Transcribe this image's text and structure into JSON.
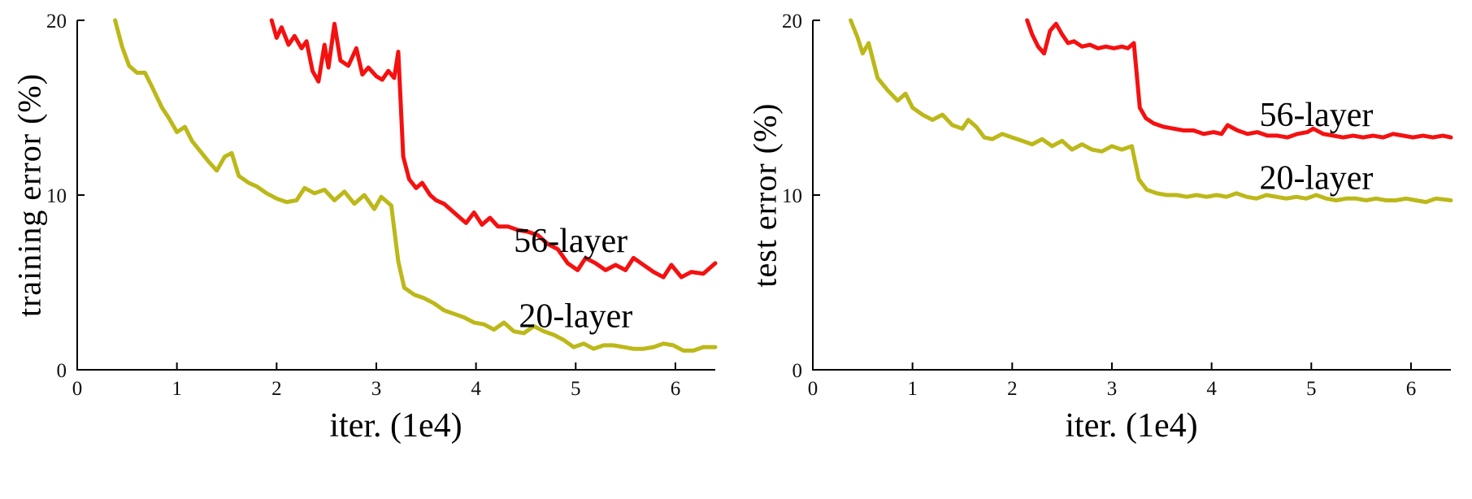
{
  "figure": {
    "background": "#ffffff"
  },
  "chart_data": [
    {
      "type": "line",
      "title": "",
      "xlabel": "iter. (1e4)",
      "ylabel": "training error (%)",
      "xlim": [
        0,
        6.4
      ],
      "ylim": [
        0,
        20
      ],
      "xticks": [
        0,
        1,
        2,
        3,
        4,
        5,
        6
      ],
      "yticks": [
        0,
        10,
        20
      ],
      "grid": false,
      "legend_position": "inline-annotations",
      "axis_color": "#000000",
      "series": [
        {
          "name": "20-layer",
          "color": "#bcb819",
          "label_pos": [
            5.0,
            3.1
          ],
          "points": [
            [
              0.38,
              20.0
            ],
            [
              0.45,
              18.5
            ],
            [
              0.52,
              17.4
            ],
            [
              0.6,
              17.0
            ],
            [
              0.68,
              17.0
            ],
            [
              0.75,
              16.2
            ],
            [
              0.85,
              15.0
            ],
            [
              0.92,
              14.4
            ],
            [
              1.0,
              13.6
            ],
            [
              1.08,
              13.9
            ],
            [
              1.15,
              13.1
            ],
            [
              1.25,
              12.4
            ],
            [
              1.32,
              11.9
            ],
            [
              1.4,
              11.4
            ],
            [
              1.48,
              12.2
            ],
            [
              1.55,
              12.4
            ],
            [
              1.62,
              11.1
            ],
            [
              1.72,
              10.7
            ],
            [
              1.8,
              10.5
            ],
            [
              1.9,
              10.1
            ],
            [
              2.0,
              9.8
            ],
            [
              2.1,
              9.6
            ],
            [
              2.2,
              9.7
            ],
            [
              2.28,
              10.4
            ],
            [
              2.38,
              10.1
            ],
            [
              2.48,
              10.3
            ],
            [
              2.58,
              9.7
            ],
            [
              2.68,
              10.2
            ],
            [
              2.78,
              9.5
            ],
            [
              2.88,
              10.0
            ],
            [
              2.98,
              9.2
            ],
            [
              3.05,
              9.9
            ],
            [
              3.15,
              9.4
            ],
            [
              3.22,
              6.2
            ],
            [
              3.28,
              4.7
            ],
            [
              3.38,
              4.3
            ],
            [
              3.48,
              4.1
            ],
            [
              3.58,
              3.8
            ],
            [
              3.68,
              3.4
            ],
            [
              3.78,
              3.2
            ],
            [
              3.88,
              3.0
            ],
            [
              3.98,
              2.7
            ],
            [
              4.08,
              2.6
            ],
            [
              4.18,
              2.3
            ],
            [
              4.28,
              2.7
            ],
            [
              4.38,
              2.2
            ],
            [
              4.48,
              2.1
            ],
            [
              4.58,
              2.5
            ],
            [
              4.68,
              2.2
            ],
            [
              4.78,
              2.0
            ],
            [
              4.88,
              1.7
            ],
            [
              4.98,
              1.3
            ],
            [
              5.08,
              1.5
            ],
            [
              5.18,
              1.2
            ],
            [
              5.28,
              1.4
            ],
            [
              5.38,
              1.4
            ],
            [
              5.48,
              1.3
            ],
            [
              5.58,
              1.2
            ],
            [
              5.68,
              1.2
            ],
            [
              5.78,
              1.3
            ],
            [
              5.88,
              1.5
            ],
            [
              5.98,
              1.4
            ],
            [
              6.08,
              1.1
            ],
            [
              6.18,
              1.1
            ],
            [
              6.28,
              1.3
            ],
            [
              6.4,
              1.3
            ]
          ]
        },
        {
          "name": "56-layer",
          "color": "#f41110",
          "label_pos": [
            4.95,
            7.4
          ],
          "points": [
            [
              1.95,
              20.0
            ],
            [
              2.0,
              19.0
            ],
            [
              2.05,
              19.6
            ],
            [
              2.12,
              18.6
            ],
            [
              2.18,
              19.1
            ],
            [
              2.25,
              18.4
            ],
            [
              2.3,
              18.8
            ],
            [
              2.36,
              17.1
            ],
            [
              2.42,
              16.5
            ],
            [
              2.48,
              18.6
            ],
            [
              2.52,
              17.3
            ],
            [
              2.58,
              19.8
            ],
            [
              2.64,
              17.7
            ],
            [
              2.72,
              17.4
            ],
            [
              2.8,
              18.4
            ],
            [
              2.86,
              16.9
            ],
            [
              2.92,
              17.3
            ],
            [
              3.0,
              16.8
            ],
            [
              3.06,
              16.6
            ],
            [
              3.12,
              17.1
            ],
            [
              3.18,
              16.7
            ],
            [
              3.22,
              18.2
            ],
            [
              3.27,
              12.2
            ],
            [
              3.33,
              10.9
            ],
            [
              3.4,
              10.4
            ],
            [
              3.46,
              10.7
            ],
            [
              3.54,
              10.0
            ],
            [
              3.6,
              9.7
            ],
            [
              3.68,
              9.5
            ],
            [
              3.76,
              9.1
            ],
            [
              3.84,
              8.7
            ],
            [
              3.9,
              8.4
            ],
            [
              3.98,
              9.0
            ],
            [
              4.06,
              8.3
            ],
            [
              4.14,
              8.7
            ],
            [
              4.22,
              8.2
            ],
            [
              4.32,
              8.2
            ],
            [
              4.42,
              8.0
            ],
            [
              4.52,
              7.9
            ],
            [
              4.62,
              7.7
            ],
            [
              4.72,
              7.2
            ],
            [
              4.82,
              6.9
            ],
            [
              4.92,
              6.1
            ],
            [
              5.02,
              5.7
            ],
            [
              5.1,
              6.4
            ],
            [
              5.2,
              6.1
            ],
            [
              5.3,
              5.7
            ],
            [
              5.4,
              6.0
            ],
            [
              5.5,
              5.7
            ],
            [
              5.58,
              6.4
            ],
            [
              5.68,
              6.0
            ],
            [
              5.78,
              5.6
            ],
            [
              5.88,
              5.3
            ],
            [
              5.96,
              6.0
            ],
            [
              6.06,
              5.3
            ],
            [
              6.16,
              5.6
            ],
            [
              6.28,
              5.5
            ],
            [
              6.4,
              6.1
            ]
          ]
        }
      ]
    },
    {
      "type": "line",
      "title": "",
      "xlabel": "iter. (1e4)",
      "ylabel": "test error (%)",
      "xlim": [
        0,
        6.4
      ],
      "ylim": [
        0,
        20
      ],
      "xticks": [
        0,
        1,
        2,
        3,
        4,
        5,
        6
      ],
      "yticks": [
        0,
        10,
        20
      ],
      "grid": false,
      "legend_position": "inline-annotations",
      "axis_color": "#000000",
      "series": [
        {
          "name": "20-layer",
          "color": "#bcb819",
          "label_pos": [
            5.05,
            11.0
          ],
          "points": [
            [
              0.38,
              20.0
            ],
            [
              0.45,
              19.0
            ],
            [
              0.5,
              18.1
            ],
            [
              0.56,
              18.7
            ],
            [
              0.65,
              16.7
            ],
            [
              0.75,
              16.0
            ],
            [
              0.85,
              15.4
            ],
            [
              0.93,
              15.8
            ],
            [
              1.0,
              15.0
            ],
            [
              1.1,
              14.6
            ],
            [
              1.2,
              14.3
            ],
            [
              1.3,
              14.6
            ],
            [
              1.4,
              14.0
            ],
            [
              1.5,
              13.8
            ],
            [
              1.56,
              14.3
            ],
            [
              1.64,
              13.9
            ],
            [
              1.72,
              13.3
            ],
            [
              1.8,
              13.2
            ],
            [
              1.9,
              13.5
            ],
            [
              2.0,
              13.3
            ],
            [
              2.1,
              13.1
            ],
            [
              2.2,
              12.9
            ],
            [
              2.3,
              13.2
            ],
            [
              2.4,
              12.8
            ],
            [
              2.5,
              13.1
            ],
            [
              2.6,
              12.6
            ],
            [
              2.7,
              12.9
            ],
            [
              2.8,
              12.6
            ],
            [
              2.9,
              12.5
            ],
            [
              3.0,
              12.8
            ],
            [
              3.1,
              12.6
            ],
            [
              3.2,
              12.8
            ],
            [
              3.27,
              10.9
            ],
            [
              3.35,
              10.3
            ],
            [
              3.45,
              10.1
            ],
            [
              3.55,
              10.0
            ],
            [
              3.65,
              10.0
            ],
            [
              3.75,
              9.9
            ],
            [
              3.85,
              10.0
            ],
            [
              3.95,
              9.9
            ],
            [
              4.05,
              10.0
            ],
            [
              4.15,
              9.9
            ],
            [
              4.25,
              10.1
            ],
            [
              4.35,
              9.9
            ],
            [
              4.45,
              9.8
            ],
            [
              4.55,
              10.0
            ],
            [
              4.65,
              9.9
            ],
            [
              4.75,
              9.8
            ],
            [
              4.85,
              9.9
            ],
            [
              4.95,
              9.8
            ],
            [
              5.05,
              10.0
            ],
            [
              5.15,
              9.8
            ],
            [
              5.25,
              9.7
            ],
            [
              5.35,
              9.8
            ],
            [
              5.45,
              9.8
            ],
            [
              5.55,
              9.7
            ],
            [
              5.65,
              9.8
            ],
            [
              5.75,
              9.7
            ],
            [
              5.85,
              9.7
            ],
            [
              5.95,
              9.8
            ],
            [
              6.05,
              9.7
            ],
            [
              6.15,
              9.6
            ],
            [
              6.25,
              9.8
            ],
            [
              6.4,
              9.7
            ]
          ]
        },
        {
          "name": "56-layer",
          "color": "#f41110",
          "label_pos": [
            5.05,
            14.6
          ],
          "points": [
            [
              2.15,
              20.0
            ],
            [
              2.2,
              19.2
            ],
            [
              2.26,
              18.5
            ],
            [
              2.32,
              18.1
            ],
            [
              2.38,
              19.4
            ],
            [
              2.44,
              19.8
            ],
            [
              2.5,
              19.2
            ],
            [
              2.56,
              18.7
            ],
            [
              2.62,
              18.8
            ],
            [
              2.7,
              18.5
            ],
            [
              2.78,
              18.6
            ],
            [
              2.86,
              18.4
            ],
            [
              2.94,
              18.5
            ],
            [
              3.02,
              18.4
            ],
            [
              3.1,
              18.5
            ],
            [
              3.16,
              18.4
            ],
            [
              3.22,
              18.7
            ],
            [
              3.28,
              15.0
            ],
            [
              3.34,
              14.4
            ],
            [
              3.42,
              14.1
            ],
            [
              3.52,
              13.9
            ],
            [
              3.62,
              13.8
            ],
            [
              3.72,
              13.7
            ],
            [
              3.82,
              13.7
            ],
            [
              3.92,
              13.5
            ],
            [
              4.02,
              13.6
            ],
            [
              4.1,
              13.5
            ],
            [
              4.16,
              14.0
            ],
            [
              4.26,
              13.7
            ],
            [
              4.36,
              13.5
            ],
            [
              4.46,
              13.6
            ],
            [
              4.56,
              13.4
            ],
            [
              4.66,
              13.4
            ],
            [
              4.76,
              13.3
            ],
            [
              4.86,
              13.5
            ],
            [
              4.96,
              13.6
            ],
            [
              5.02,
              13.8
            ],
            [
              5.12,
              13.5
            ],
            [
              5.22,
              13.4
            ],
            [
              5.32,
              13.3
            ],
            [
              5.42,
              13.4
            ],
            [
              5.52,
              13.3
            ],
            [
              5.62,
              13.4
            ],
            [
              5.72,
              13.3
            ],
            [
              5.82,
              13.5
            ],
            [
              5.92,
              13.4
            ],
            [
              6.02,
              13.3
            ],
            [
              6.12,
              13.4
            ],
            [
              6.22,
              13.3
            ],
            [
              6.32,
              13.4
            ],
            [
              6.4,
              13.3
            ]
          ]
        }
      ]
    }
  ]
}
